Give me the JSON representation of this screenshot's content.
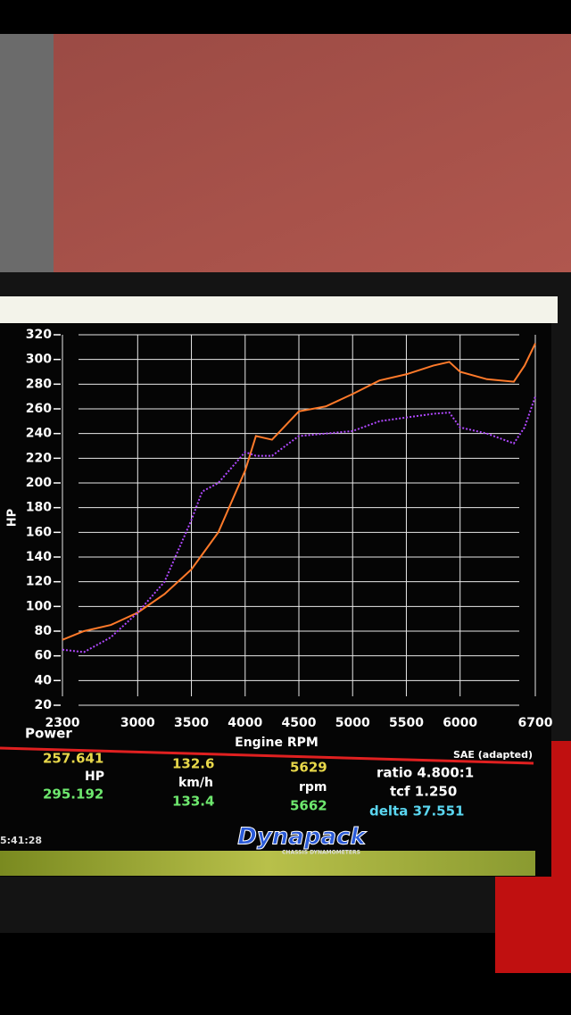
{
  "chart_data": {
    "type": "line",
    "ylabel": "HP",
    "xlabel": "Engine RPM",
    "section_label": "Power",
    "standard": "SAE (adapted)",
    "x": [
      2300,
      2500,
      2750,
      3000,
      3250,
      3500,
      3600,
      3750,
      4000,
      4100,
      4250,
      4500,
      4750,
      5000,
      5250,
      5500,
      5750,
      5900,
      6000,
      6250,
      6500,
      6600,
      6700
    ],
    "series": [
      {
        "color": "#ff7a2a",
        "values": [
          73,
          80,
          85,
          95,
          110,
          130,
          142,
          160,
          210,
          238,
          235,
          258,
          262,
          272,
          283,
          288,
          295,
          298,
          290,
          284,
          282,
          295,
          313
        ]
      },
      {
        "color": "#b048ff",
        "values": [
          65,
          63,
          75,
          95,
          120,
          170,
          193,
          200,
          225,
          222,
          222,
          238,
          240,
          242,
          250,
          253,
          256,
          257,
          245,
          240,
          232,
          245,
          270
        ]
      }
    ],
    "xlim": [
      2300,
      6700
    ],
    "xticks": [
      2300,
      3000,
      3500,
      4000,
      4500,
      5000,
      5500,
      6000,
      6700
    ],
    "ylim": [
      20,
      320
    ],
    "yticks": [
      20,
      40,
      60,
      80,
      100,
      120,
      140,
      160,
      180,
      200,
      220,
      240,
      260,
      280,
      300,
      320
    ],
    "grid": true
  },
  "readout": {
    "power_1": "257.641",
    "power_unit": "HP",
    "power_2": "295.192",
    "speed_1": "132.6",
    "speed_unit": "km/h",
    "speed_2": "133.4",
    "rpm_1": "5629",
    "rpm_unit": "rpm",
    "rpm_2": "5662",
    "ratio": "ratio 4.800:1",
    "tcf": "tcf 1.250",
    "delta": "delta 37.551"
  },
  "footer": {
    "time": "5:41:28",
    "brand": "Dynapack",
    "brand_sub": "CHASSIS DYNAMOMETERS"
  }
}
